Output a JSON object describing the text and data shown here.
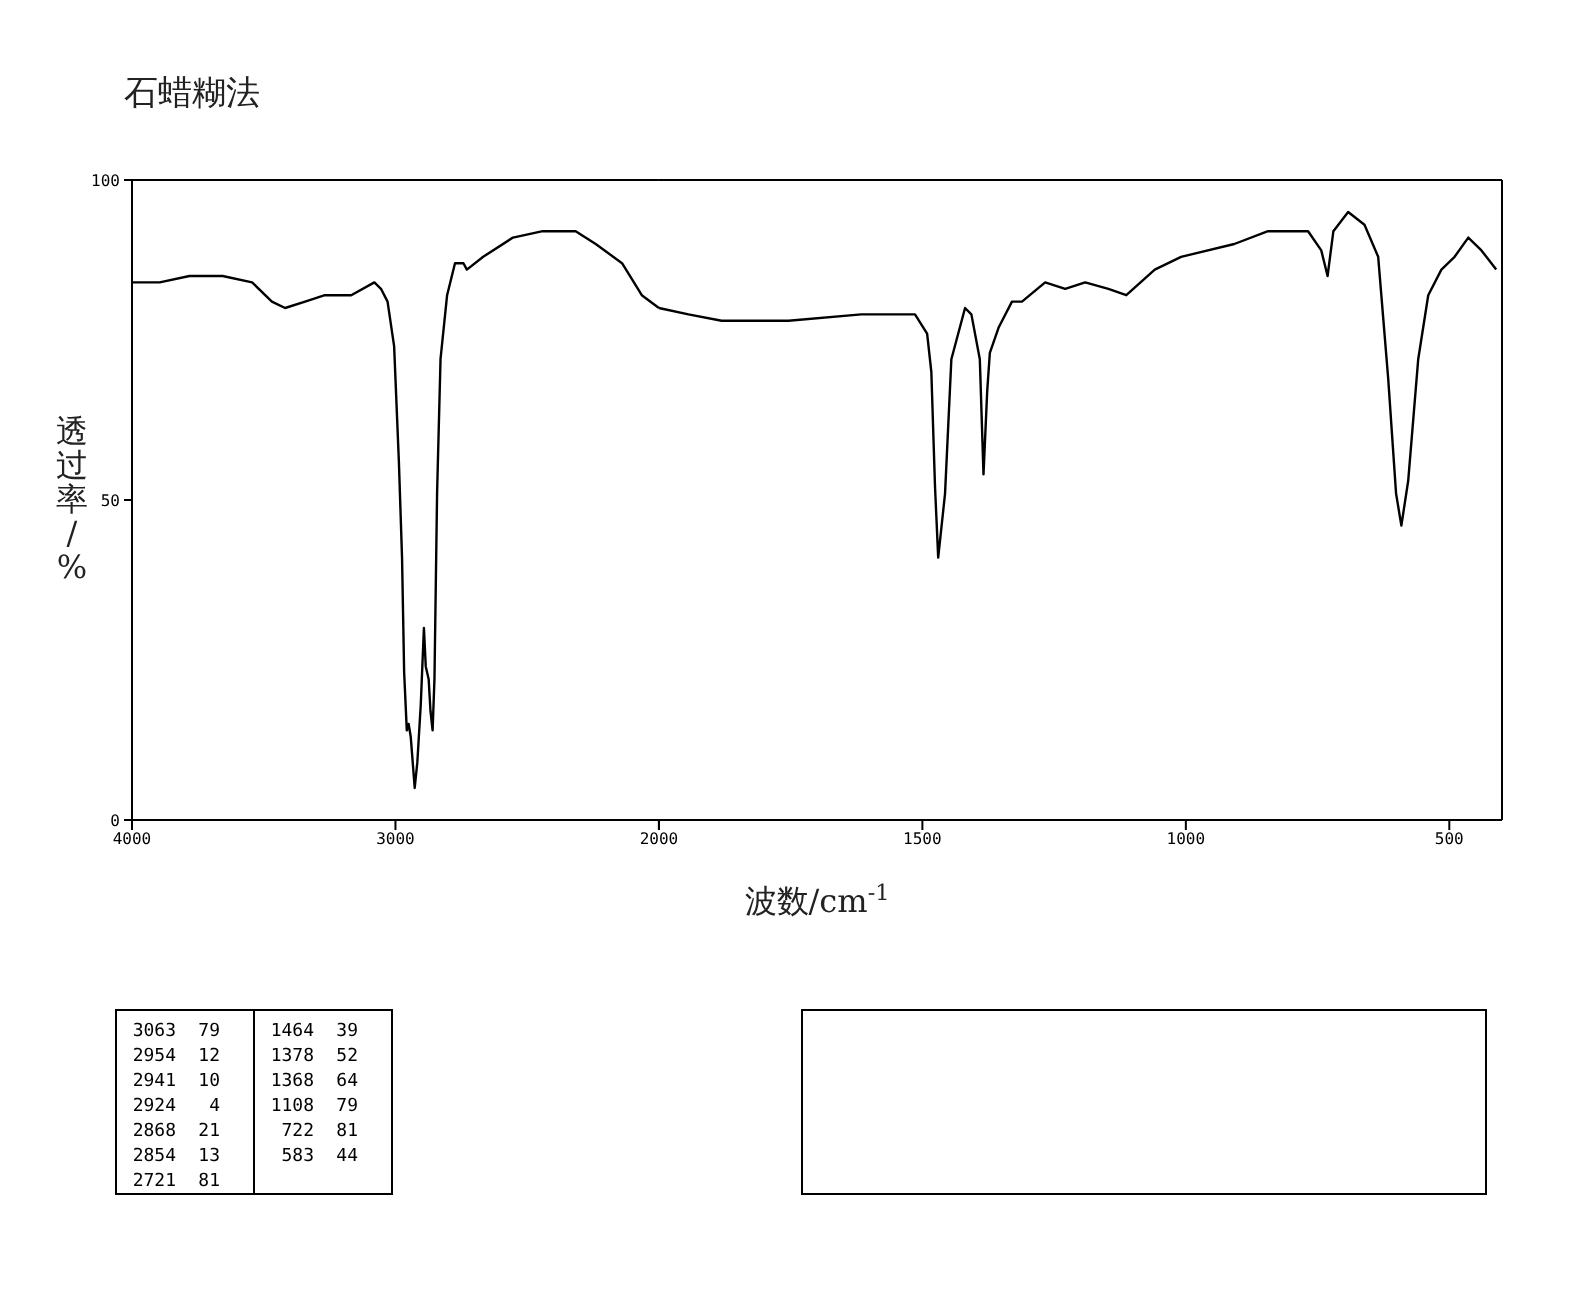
{
  "chart_data": [
    {
      "type": "line",
      "title": "石蜡糊法",
      "ylabel": "透过率/%",
      "xlim": [
        4000,
        2000
      ],
      "xticks": [
        4000,
        3000,
        {
          "value": 2000,
          "label": null
        }
      ],
      "ylim": [
        0,
        100
      ],
      "yticks": [
        0,
        50,
        100
      ],
      "grid": false,
      "tick_labels": "xy",
      "series": [
        {
          "color": "#000000",
          "x": [
            4000,
            3895,
            3782,
            3656,
            3544,
            3469,
            3419,
            3343,
            3268,
            3168,
            3080,
            3055,
            3030,
            3005,
            2987,
            2975,
            2967,
            2957,
            2950,
            2942,
            2927,
            2917,
            2904,
            2892,
            2885,
            2874,
            2867,
            2859,
            2852,
            2842,
            2829,
            2804,
            2774,
            2742,
            2729,
            2667,
            2554,
            2441,
            2316,
            2240,
            2140,
            2065,
            2000
          ],
          "values": [
            84,
            84,
            85,
            85,
            84,
            81,
            80,
            81,
            82,
            82,
            84,
            83,
            81,
            74,
            56,
            41,
            23,
            14,
            15,
            13,
            5,
            9,
            18,
            30,
            24,
            22,
            17,
            14,
            22,
            51,
            72,
            82,
            87,
            87,
            86,
            88,
            91,
            92,
            92,
            90,
            87,
            82,
            80
          ]
        }
      ],
      "annotations": [
        "3063",
        "79",
        "2954",
        "12",
        "2941",
        "10",
        "2924",
        "4",
        "2868",
        "21",
        "2854",
        "13",
        "2721",
        "81",
        "1464",
        "39",
        "1378",
        "52",
        "1368",
        "64",
        "1108",
        "79",
        "722",
        "81",
        "583",
        "44"
      ]
    },
    {
      "type": "line",
      "xlabel": "波数/cm$^{-1}$",
      "xlim": [
        2000,
        400
      ],
      "xticks": [
        2000,
        1500,
        1000,
        500
      ],
      "ylim": [
        0,
        100
      ],
      "grid": false,
      "tick_labels": "x",
      "series": [
        {
          "color": "#000000",
          "x": [
            2000,
            1944,
            1881,
            1818,
            1754,
            1616,
            1565,
            1514,
            1491,
            1483,
            1476,
            1470,
            1457,
            1445,
            1419,
            1407,
            1391,
            1384,
            1377,
            1372,
            1355,
            1330,
            1311,
            1267,
            1229,
            1191,
            1147,
            1113,
            1059,
            1009,
            908,
            844,
            768,
            743,
            731,
            720,
            692,
            661,
            635,
            616,
            601,
            591,
            578,
            559,
            540,
            515,
            490,
            464,
            439,
            411
          ],
          "values": [
            80,
            79,
            78,
            78,
            78,
            79,
            79,
            79,
            76,
            70,
            52,
            41,
            51,
            72,
            80,
            79,
            72,
            54,
            67,
            73,
            77,
            81,
            81,
            84,
            83,
            84,
            83,
            82,
            86,
            88,
            90,
            92,
            92,
            89,
            85,
            92,
            95,
            93,
            88,
            69,
            51,
            46,
            53,
            72,
            82,
            86,
            88,
            91,
            89,
            86
          ]
        }
      ]
    }
  ]
}
